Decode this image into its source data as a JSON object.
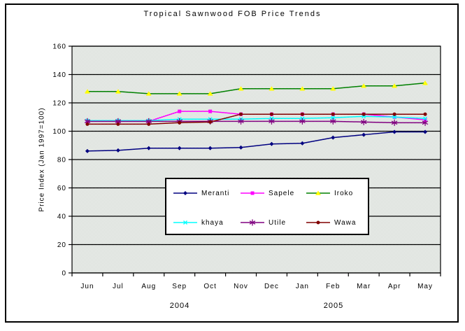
{
  "chart_data": {
    "type": "line",
    "title": "Tropical Sawnwood FOB Price Trends",
    "ylabel": "Price Index (Jan 1997=100)",
    "xlabel": "",
    "ylim": [
      0,
      160
    ],
    "ytick_interval": 20,
    "yticks": [
      0,
      20,
      40,
      60,
      80,
      100,
      120,
      140,
      160
    ],
    "grid": true,
    "plot_background": "dithered-light-gray",
    "legend_position": "overlay-center-bottom",
    "categories": [
      "Jun",
      "Jul",
      "Aug",
      "Sep",
      "Oct",
      "Nov",
      "Dec",
      "Jan",
      "Feb",
      "Mar",
      "Apr",
      "May"
    ],
    "year_labels": [
      {
        "text": "2004"
      },
      {
        "text": "2005"
      }
    ],
    "series": [
      {
        "name": "Meranti",
        "color": "#000080",
        "marker": "diamond",
        "marker_color": "#000080",
        "values": [
          86,
          86.5,
          88,
          88,
          88,
          88.5,
          91,
          91.5,
          95.5,
          97.5,
          99.5,
          99.5
        ]
      },
      {
        "name": "Sapele",
        "color": "#FF00FF",
        "marker": "square",
        "marker_color": "#FF00FF",
        "values": [
          107,
          107,
          107,
          114,
          114,
          112,
          112,
          112,
          112,
          112,
          110,
          108
        ]
      },
      {
        "name": "Iroko",
        "color": "#008000",
        "marker": "triangle",
        "marker_color": "#FFFF00",
        "values": [
          128,
          128,
          126.5,
          126.5,
          126.5,
          130,
          130,
          130,
          130,
          132,
          132,
          134
        ]
      },
      {
        "name": "khaya",
        "color": "#00FFFF",
        "marker": "x",
        "marker_color": "#00FFFF",
        "values": [
          107.5,
          107.5,
          107.5,
          108.5,
          108.5,
          108.5,
          109,
          109,
          109.5,
          110.5,
          110,
          109
        ]
      },
      {
        "name": "Utile",
        "color": "#800080",
        "marker": "asterisk",
        "marker_color": "#800080",
        "values": [
          107,
          107,
          107,
          107,
          107,
          107,
          107,
          107,
          107,
          106.5,
          106,
          106
        ]
      },
      {
        "name": "Wawa",
        "color": "#800000",
        "marker": "circle",
        "marker_color": "#800000",
        "values": [
          105,
          105,
          105,
          106,
          106.5,
          112,
          112,
          112,
          112,
          112,
          112,
          112
        ]
      }
    ]
  },
  "colors": {
    "grid": "#000000",
    "axis": "#000000",
    "plot_dither_light": "#ffffff",
    "plot_dither_dark": "#c6cec6",
    "frame_border": "#000000"
  }
}
